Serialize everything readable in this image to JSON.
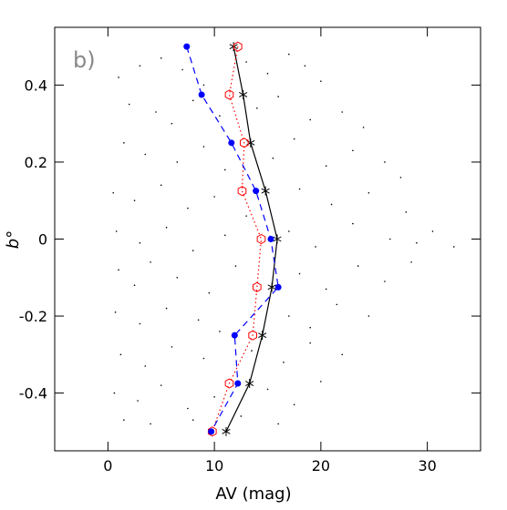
{
  "chart_data": {
    "type": "line",
    "annotation": "b)",
    "xlabel": "AV (mag)",
    "ylabel": "b°",
    "xlim": [
      -5,
      35
    ],
    "xticks": [
      0,
      10,
      20,
      30
    ],
    "ylim": [
      -0.55,
      0.55
    ],
    "yticks": [
      -0.4,
      -0.2,
      0,
      0.2,
      0.4
    ],
    "series": [
      {
        "color": "#000000",
        "marker": "dot",
        "line": "none",
        "x": [
          1,
          3,
          5,
          7,
          9,
          13,
          15,
          17,
          18.5,
          20,
          2,
          4.5,
          6,
          8,
          10.5,
          14,
          16,
          19,
          22,
          24,
          1.5,
          3.5,
          6.5,
          9,
          11,
          15.5,
          17.5,
          20.5,
          23,
          26,
          27.5,
          0.5,
          2.5,
          5,
          7.5,
          10,
          13,
          18,
          21,
          24.5,
          28,
          0.8,
          3,
          5.5,
          8,
          11,
          17,
          19.5,
          23,
          26.5,
          29,
          32.5,
          30.5,
          1,
          2.5,
          4,
          6.5,
          9.5,
          12,
          18,
          20.5,
          23.5,
          26,
          28.5,
          0.7,
          3,
          5.5,
          8.5,
          10.5,
          17,
          19,
          21.5,
          24.5,
          1.2,
          3.5,
          6,
          9,
          13.5,
          16.5,
          19,
          22,
          0.6,
          2.8,
          5,
          7.5,
          10,
          15,
          17.5,
          20,
          1.5,
          4,
          8,
          12.5,
          16
        ],
        "values": [
          0.42,
          0.45,
          0.47,
          0.44,
          0.4,
          0.46,
          0.43,
          0.48,
          0.45,
          0.41,
          0.35,
          0.33,
          0.3,
          0.36,
          0.32,
          0.34,
          0.37,
          0.31,
          0.33,
          0.29,
          0.25,
          0.22,
          0.2,
          0.24,
          0.18,
          0.21,
          0.26,
          0.19,
          0.23,
          0.2,
          0.16,
          0.12,
          0.1,
          0.14,
          0.08,
          0.11,
          0.06,
          0.13,
          0.09,
          0.12,
          0.07,
          0.02,
          -0.01,
          0.03,
          -0.03,
          0.01,
          0.02,
          -0.02,
          0.04,
          0,
          -0.01,
          -0.02,
          0.02,
          -0.08,
          -0.12,
          -0.06,
          -0.1,
          -0.14,
          -0.07,
          -0.09,
          -0.13,
          -0.07,
          -0.11,
          -0.06,
          -0.19,
          -0.22,
          -0.18,
          -0.21,
          -0.24,
          -0.2,
          -0.23,
          -0.17,
          -0.2,
          -0.3,
          -0.33,
          -0.28,
          -0.31,
          -0.29,
          -0.32,
          -0.27,
          -0.3,
          -0.4,
          -0.42,
          -0.38,
          -0.44,
          -0.41,
          -0.39,
          -0.43,
          -0.37,
          -0.47,
          -0.48,
          -0.47,
          -0.46,
          -0.48
        ]
      },
      {
        "color": "#000000",
        "marker": "star",
        "line": "solid",
        "x": [
          11.8,
          12.7,
          13.4,
          14.8,
          15.9,
          15.4,
          14.5,
          13.3,
          11.1
        ],
        "values": [
          0.5,
          0.375,
          0.25,
          0.125,
          0,
          -0.125,
          -0.25,
          -0.375,
          -0.5
        ]
      },
      {
        "color": "#ff0000",
        "marker": "hexagon",
        "line": "dotted",
        "x": [
          12.2,
          11.4,
          12.8,
          12.6,
          14.4,
          14.0,
          13.6,
          11.4,
          9.8
        ],
        "values": [
          0.5,
          0.375,
          0.25,
          0.125,
          0,
          -0.125,
          -0.25,
          -0.375,
          -0.5
        ]
      },
      {
        "color": "#0000ff",
        "marker": "circle",
        "line": "dashed",
        "x": [
          7.4,
          8.8,
          11.6,
          13.9,
          15.3,
          16.0,
          11.9,
          12.2,
          9.7
        ],
        "values": [
          0.5,
          0.375,
          0.25,
          0.125,
          0,
          -0.125,
          -0.25,
          -0.375,
          -0.5
        ]
      }
    ]
  }
}
